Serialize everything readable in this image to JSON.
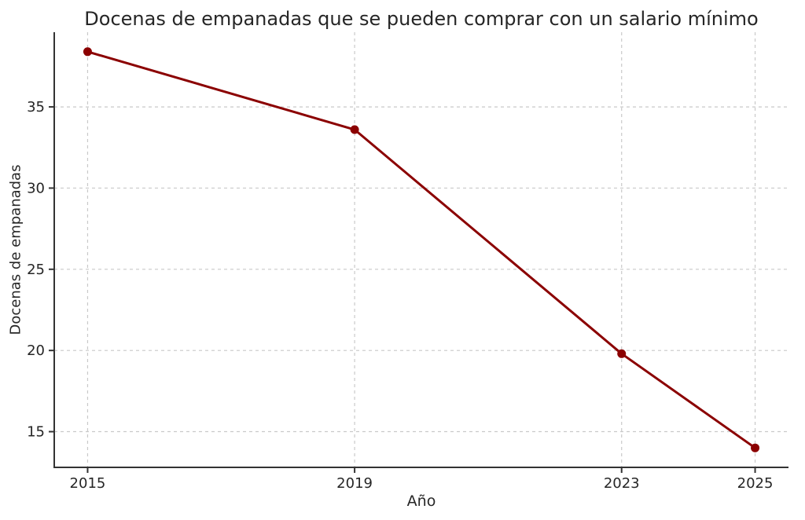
{
  "chart_data": {
    "type": "line",
    "title": "Docenas de empanadas que se pueden comprar con un salario mínimo",
    "xlabel": "Año",
    "ylabel": "Docenas de empanadas",
    "x": [
      2015,
      2019,
      2023,
      2025
    ],
    "values": [
      38.4,
      33.6,
      19.8,
      14.0
    ],
    "series": [
      {
        "name": "Docenas de empanadas",
        "x": [
          2015,
          2019,
          2023,
          2025
        ],
        "y": [
          38.4,
          33.6,
          19.8,
          14.0
        ]
      }
    ],
    "xticks": [
      2015,
      2019,
      2023,
      2025
    ],
    "yticks": [
      15,
      20,
      25,
      30,
      35
    ],
    "xlim": [
      2014.5,
      2025.5
    ],
    "ylim": [
      12.8,
      39.6
    ],
    "grid": true,
    "grid_style": "dashed",
    "legend": null,
    "marker": "circle",
    "colors": {
      "line": "#8b0000",
      "grid": "#c9c9c9",
      "spine": "#333333",
      "text": "#262626",
      "background": "#ffffff"
    }
  }
}
